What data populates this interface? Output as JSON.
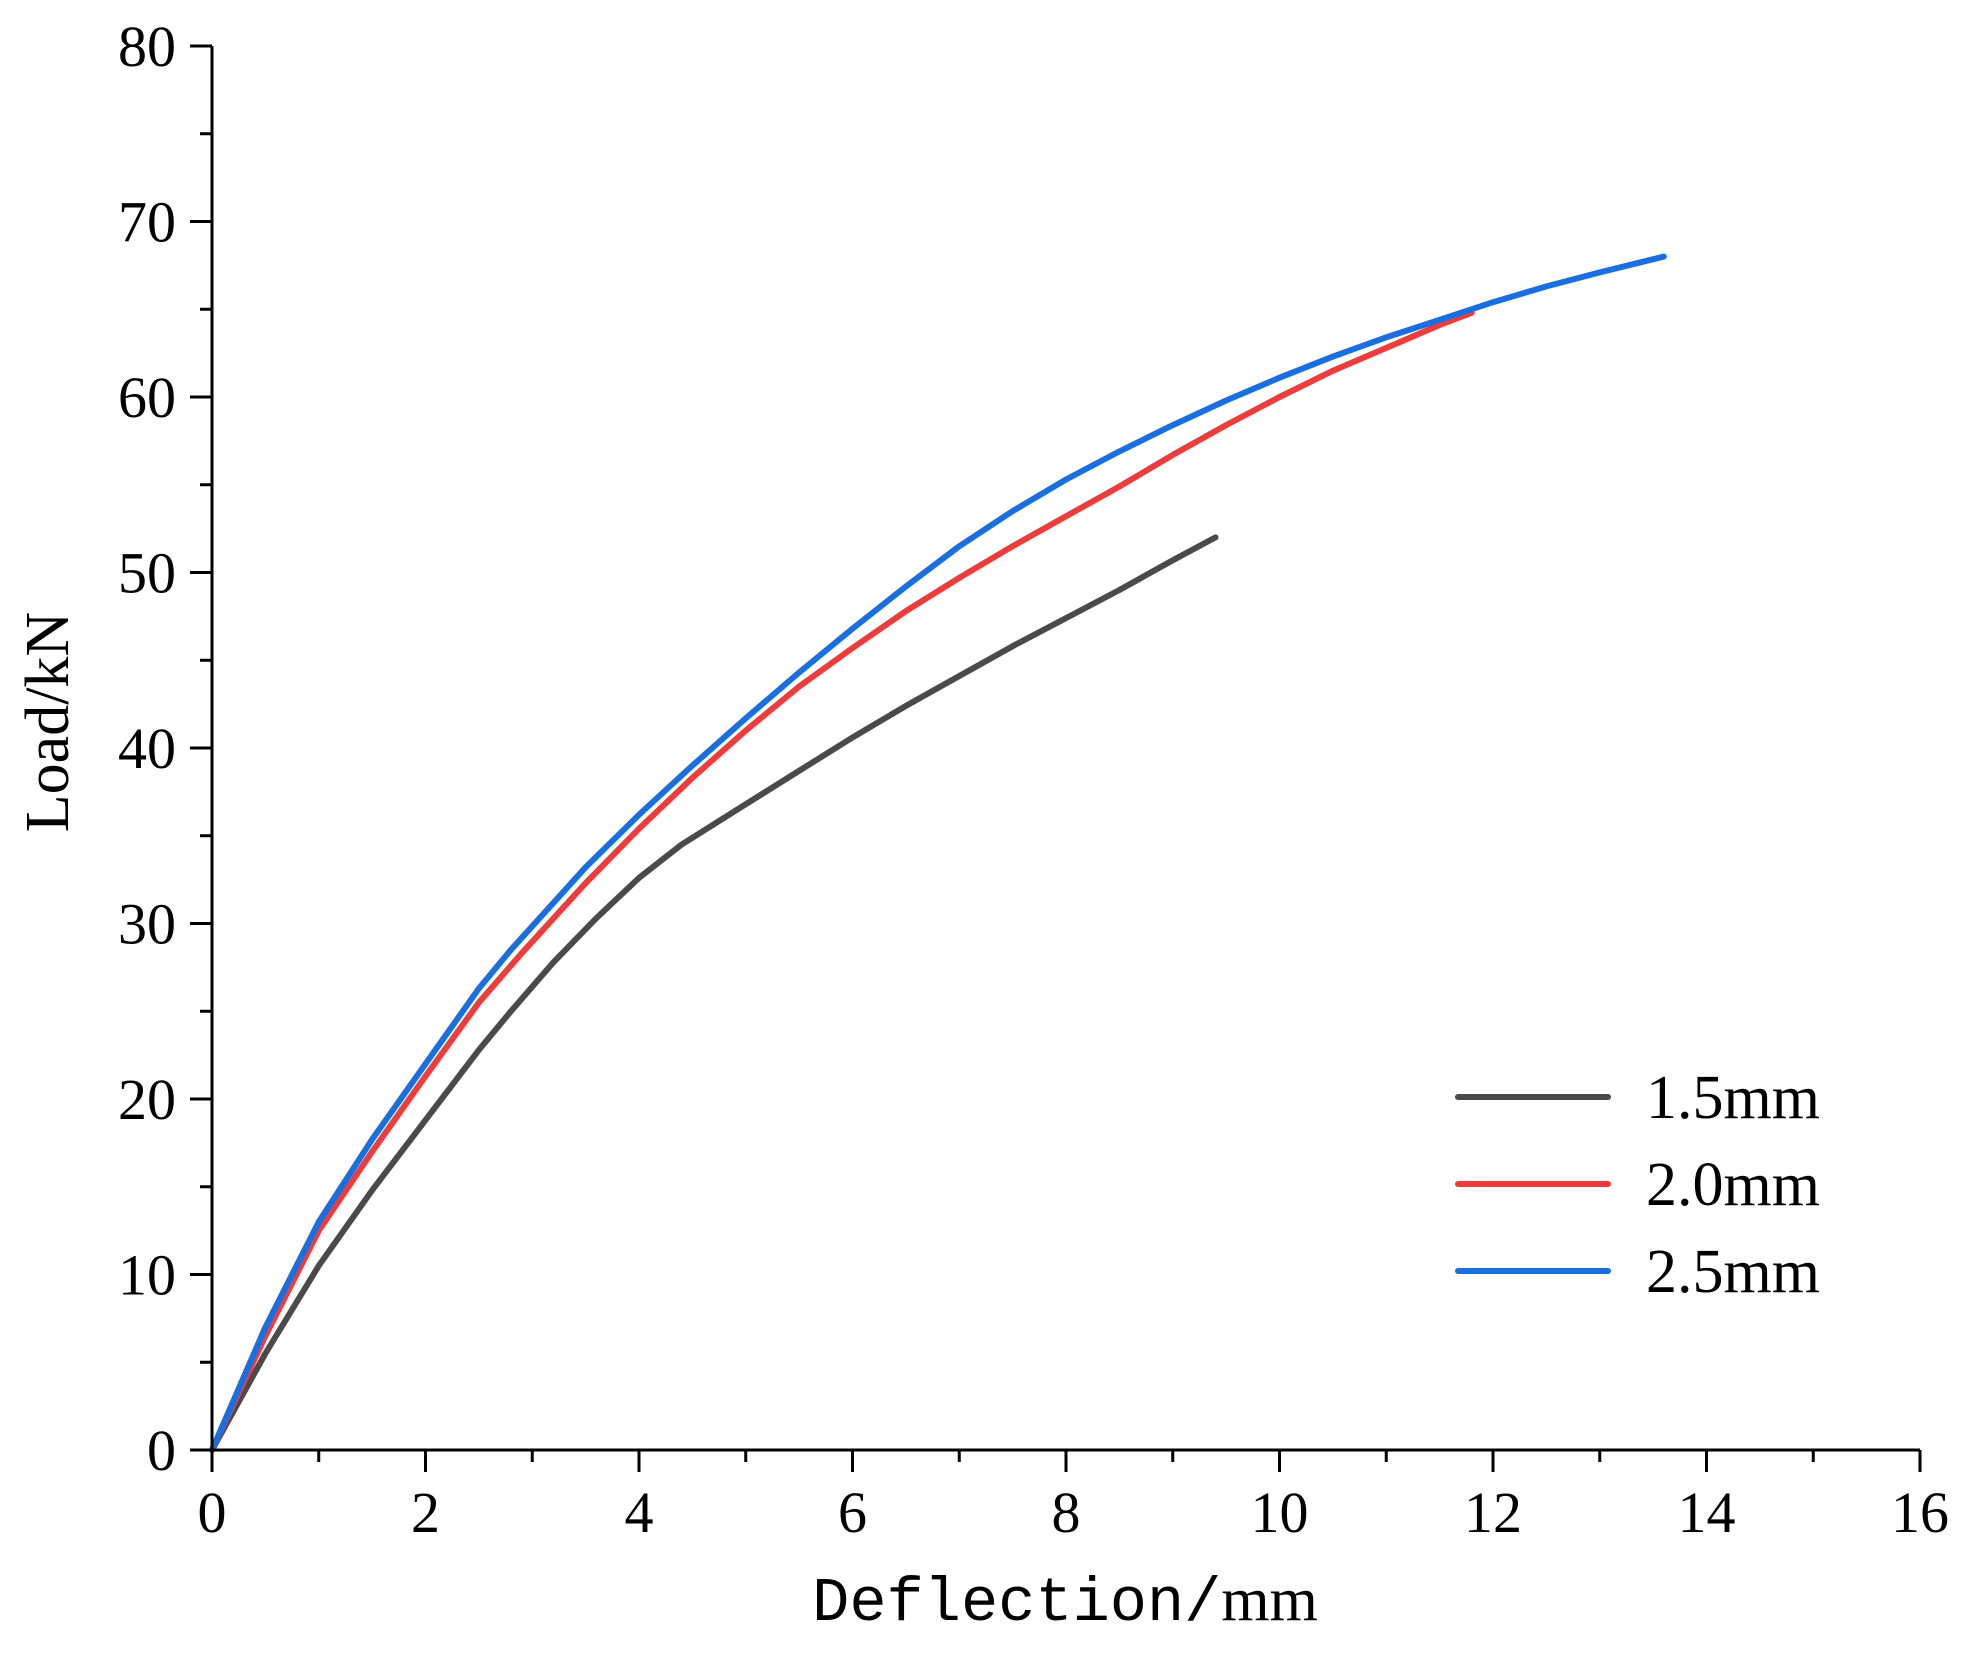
{
  "chart_data": {
    "type": "line",
    "title": "",
    "xlabel_prefix": "Deflection/",
    "xlabel_suffix": "mm",
    "ylabel": "Load/kN",
    "xlim": [
      0,
      16
    ],
    "ylim": [
      0,
      80
    ],
    "x_ticks": [
      0,
      2,
      4,
      6,
      8,
      10,
      12,
      14,
      16
    ],
    "y_ticks": [
      0,
      10,
      20,
      30,
      40,
      50,
      60,
      70,
      80
    ],
    "x_tick_labels": [
      "0",
      "2",
      "4",
      "6",
      "8",
      "10",
      "12",
      "14",
      "16"
    ],
    "y_tick_labels": [
      "0",
      "10",
      "20",
      "30",
      "40",
      "50",
      "60",
      "70",
      "80"
    ],
    "grid": false,
    "legend_position": "bottom-right",
    "series": [
      {
        "name": "1.5mm",
        "color": "#4a4a4a",
        "x": [
          0,
          0.5,
          1,
          1.5,
          2,
          2.5,
          2.8,
          3.2,
          3.6,
          4,
          4.4,
          5,
          5.5,
          6,
          6.5,
          7,
          7.5,
          8,
          8.5,
          9,
          9.4
        ],
        "y": [
          0,
          5.5,
          10.5,
          14.8,
          18.8,
          22.8,
          25,
          27.8,
          30.3,
          32.6,
          34.5,
          36.8,
          38.7,
          40.6,
          42.4,
          44.1,
          45.8,
          47.4,
          49,
          50.7,
          52
        ]
      },
      {
        "name": "2.0mm",
        "color": "#ee3b3b",
        "x": [
          0,
          0.5,
          1,
          1.5,
          2,
          2.5,
          2.9,
          3.5,
          4,
          4.5,
          5,
          5.5,
          6,
          6.5,
          7,
          7.5,
          8,
          8.5,
          9,
          9.5,
          10,
          10.5,
          11,
          11.5,
          11.8
        ],
        "y": [
          0,
          6.5,
          12.5,
          17,
          21.3,
          25.5,
          28.3,
          32.3,
          35.4,
          38.3,
          41,
          43.5,
          45.7,
          47.8,
          49.7,
          51.5,
          53.2,
          54.9,
          56.7,
          58.4,
          60,
          61.5,
          62.8,
          64.1,
          64.8
        ]
      },
      {
        "name": "2.5mm",
        "color": "#1a6fe0",
        "x": [
          0,
          0.5,
          1,
          1.5,
          2,
          2.5,
          2.8,
          3.5,
          4,
          4.5,
          5,
          5.5,
          6,
          6.5,
          7,
          7.5,
          8,
          8.5,
          9,
          9.5,
          10,
          10.5,
          11,
          11.5,
          12,
          12.5,
          13,
          13.6
        ],
        "y": [
          0,
          7,
          13,
          17.7,
          22,
          26.3,
          28.5,
          33.2,
          36.2,
          39,
          41.7,
          44.3,
          46.8,
          49.2,
          51.5,
          53.5,
          55.3,
          56.9,
          58.4,
          59.8,
          61.1,
          62.3,
          63.4,
          64.4,
          65.4,
          66.3,
          67.1,
          68
        ]
      }
    ]
  }
}
